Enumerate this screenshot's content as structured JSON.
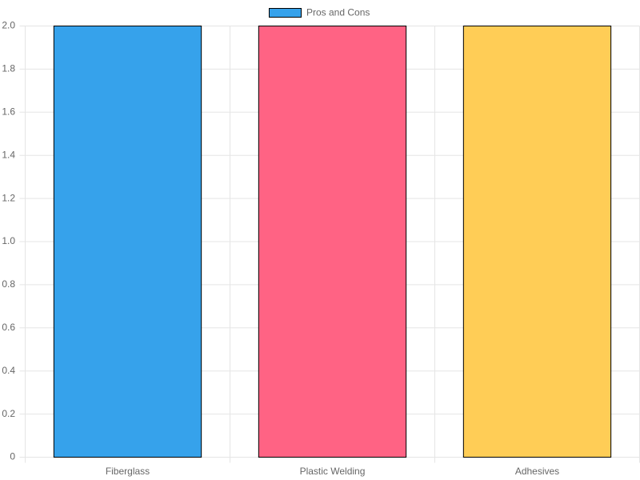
{
  "chart_data": {
    "type": "bar",
    "categories": [
      "Fiberglass",
      "Plastic Welding",
      "Adhesives"
    ],
    "series": [
      {
        "name": "Pros and Cons",
        "colors": [
          "#36a2eb",
          "#ff6384",
          "#ffcd56"
        ],
        "values": [
          2,
          2,
          2
        ]
      }
    ],
    "ylim": [
      0,
      2
    ],
    "yticks": [
      0,
      0.2,
      0.4,
      0.6,
      0.8,
      {
        "value": 1,
        "label": "1.0"
      },
      1.2,
      1.4,
      1.6,
      1.8,
      {
        "value": 2,
        "label": "2.0"
      }
    ],
    "grid": true,
    "legend": "top"
  }
}
